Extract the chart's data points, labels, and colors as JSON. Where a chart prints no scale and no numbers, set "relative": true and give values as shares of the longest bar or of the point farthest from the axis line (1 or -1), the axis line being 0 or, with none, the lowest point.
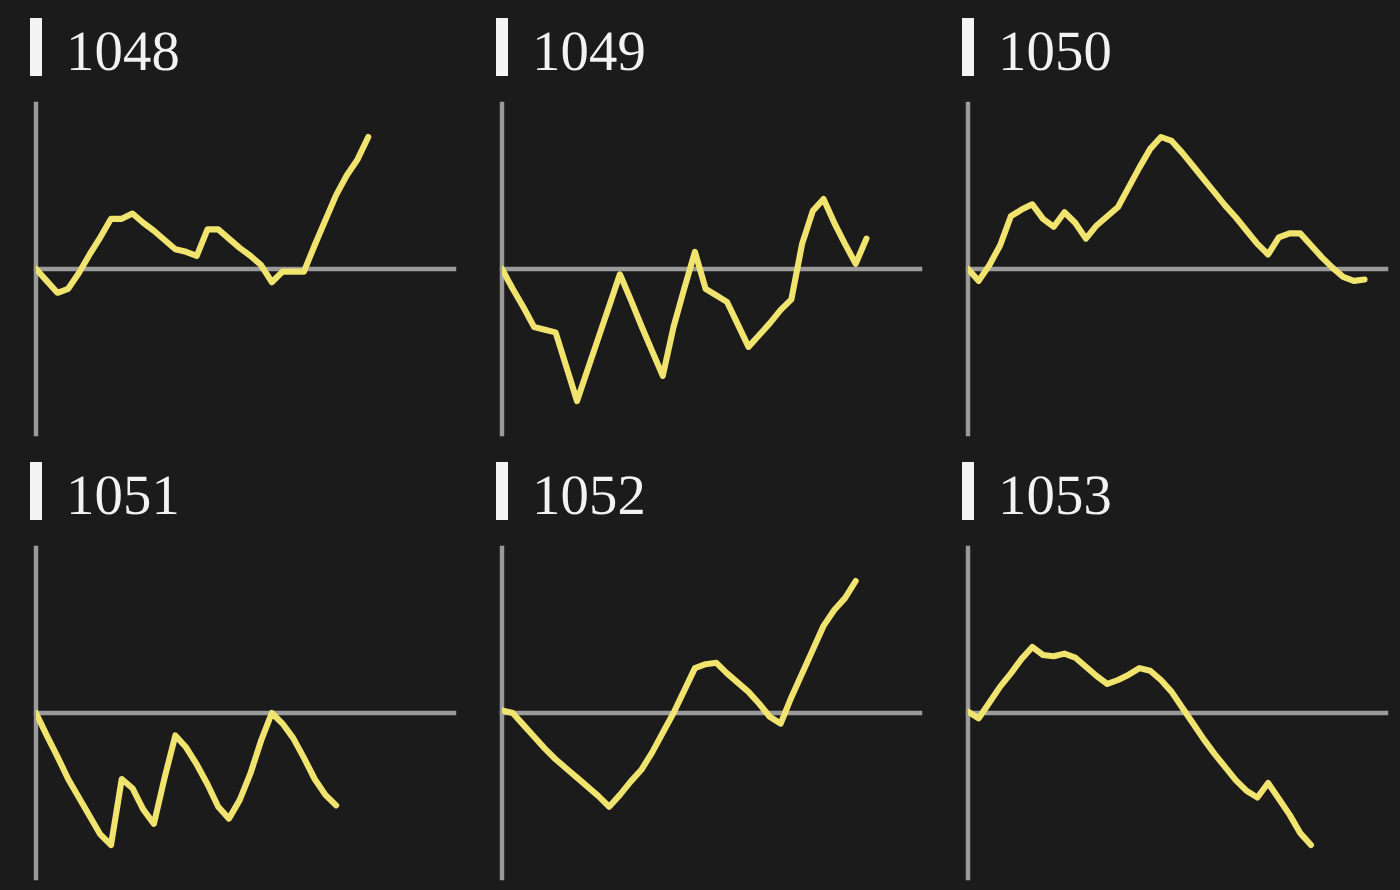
{
  "chart_data": [
    {
      "type": "line",
      "title": "1048",
      "relative": true,
      "categories": [
        null,
        null,
        null,
        null,
        null,
        null,
        null,
        null,
        null,
        null,
        null,
        null,
        null,
        null,
        null,
        null,
        null,
        null,
        null,
        null,
        null,
        null,
        null,
        null,
        null,
        null,
        null,
        null,
        null,
        null,
        null,
        null,
        null,
        null,
        null,
        null,
        null,
        null,
        null,
        null
      ],
      "series": [
        {
          "color": "#f0e36e",
          "values": [
            0,
            -0.09,
            -0.18,
            -0.15,
            -0.03,
            0.11,
            0.24,
            0.38,
            0.38,
            0.42,
            0.35,
            0.29,
            0.22,
            0.15,
            0.13,
            0.1,
            0.3,
            0.3,
            0.23,
            0.16,
            0.1,
            0.03,
            -0.1,
            -0.02,
            -0.02,
            -0.02,
            0.18,
            0.37,
            0.56,
            0.71,
            0.83,
            1.0,
            null,
            null,
            null,
            null,
            null,
            null,
            null,
            null
          ]
        }
      ]
    },
    {
      "type": "line",
      "title": "1049",
      "relative": true,
      "categories": [
        null,
        null,
        null,
        null,
        null,
        null,
        null,
        null,
        null,
        null,
        null,
        null,
        null,
        null,
        null,
        null,
        null,
        null,
        null,
        null,
        null,
        null,
        null,
        null,
        null,
        null,
        null,
        null,
        null,
        null,
        null,
        null,
        null,
        null,
        null,
        null,
        null,
        null,
        null,
        null
      ],
      "series": [
        {
          "color": "#f0e36e",
          "values": [
            0,
            -0.15,
            -0.29,
            -0.44,
            -0.46,
            -0.48,
            -0.74,
            -1.0,
            -0.76,
            -0.52,
            -0.28,
            -0.04,
            -0.23,
            -0.43,
            -0.62,
            -0.81,
            -0.44,
            -0.15,
            0.13,
            -0.15,
            -0.2,
            -0.25,
            -0.42,
            -0.59,
            -0.5,
            -0.41,
            -0.31,
            -0.23,
            0.19,
            0.44,
            0.53,
            0.35,
            0.19,
            0.04,
            0.23,
            null,
            null,
            null,
            null,
            null
          ]
        }
      ]
    },
    {
      "type": "line",
      "title": "1050",
      "relative": true,
      "categories": [
        null,
        null,
        null,
        null,
        null,
        null,
        null,
        null,
        null,
        null,
        null,
        null,
        null,
        null,
        null,
        null,
        null,
        null,
        null,
        null,
        null,
        null,
        null,
        null,
        null,
        null,
        null,
        null,
        null,
        null,
        null,
        null,
        null,
        null,
        null,
        null,
        null,
        null,
        null,
        null
      ],
      "series": [
        {
          "color": "#f0e36e",
          "values": [
            0,
            -0.09,
            0.03,
            0.18,
            0.4,
            0.45,
            0.49,
            0.38,
            0.32,
            0.43,
            0.35,
            0.23,
            0.33,
            0.4,
            0.47,
            0.62,
            0.77,
            0.91,
            1.0,
            0.97,
            0.88,
            0.78,
            0.68,
            0.58,
            0.48,
            0.39,
            0.29,
            0.19,
            0.11,
            0.24,
            0.27,
            0.27,
            0.18,
            0.09,
            0.01,
            -0.06,
            -0.09,
            -0.08,
            null,
            null
          ]
        }
      ]
    },
    {
      "type": "line",
      "title": "1051",
      "relative": true,
      "categories": [
        null,
        null,
        null,
        null,
        null,
        null,
        null,
        null,
        null,
        null,
        null,
        null,
        null,
        null,
        null,
        null,
        null,
        null,
        null,
        null,
        null,
        null,
        null,
        null,
        null,
        null,
        null,
        null,
        null,
        null,
        null,
        null,
        null,
        null,
        null,
        null,
        null,
        null,
        null,
        null
      ],
      "series": [
        {
          "color": "#f0e36e",
          "values": [
            0,
            -0.17,
            -0.33,
            -0.5,
            -0.64,
            -0.78,
            -0.92,
            -1.0,
            -0.5,
            -0.57,
            -0.73,
            -0.84,
            -0.49,
            -0.17,
            -0.26,
            -0.39,
            -0.54,
            -0.71,
            -0.8,
            -0.66,
            -0.46,
            -0.21,
            0,
            -0.08,
            -0.19,
            -0.34,
            -0.5,
            -0.62,
            -0.7,
            null,
            null,
            null,
            null,
            null,
            null,
            null,
            null,
            null,
            null,
            null
          ]
        }
      ]
    },
    {
      "type": "line",
      "title": "1052",
      "relative": true,
      "categories": [
        null,
        null,
        null,
        null,
        null,
        null,
        null,
        null,
        null,
        null,
        null,
        null,
        null,
        null,
        null,
        null,
        null,
        null,
        null,
        null,
        null,
        null,
        null,
        null,
        null,
        null,
        null,
        null,
        null,
        null,
        null,
        null,
        null,
        null,
        null,
        null,
        null,
        null,
        null,
        null
      ],
      "series": [
        {
          "color": "#f0e36e",
          "values": [
            0.02,
            0,
            -0.09,
            -0.18,
            -0.27,
            -0.35,
            -0.42,
            -0.49,
            -0.56,
            -0.63,
            -0.71,
            -0.62,
            -0.52,
            -0.43,
            -0.3,
            -0.15,
            0,
            0.17,
            0.34,
            0.37,
            0.38,
            0.3,
            0.23,
            0.16,
            0.07,
            -0.03,
            -0.08,
            0.12,
            0.3,
            0.48,
            0.66,
            0.78,
            0.87,
            1.0,
            null,
            null,
            null,
            null,
            null,
            null
          ]
        }
      ]
    },
    {
      "type": "line",
      "title": "1053",
      "relative": true,
      "categories": [
        null,
        null,
        null,
        null,
        null,
        null,
        null,
        null,
        null,
        null,
        null,
        null,
        null,
        null,
        null,
        null,
        null,
        null,
        null,
        null,
        null,
        null,
        null,
        null,
        null,
        null,
        null,
        null,
        null,
        null,
        null,
        null,
        null,
        null,
        null,
        null,
        null,
        null,
        null,
        null
      ],
      "series": [
        {
          "color": "#f0e36e",
          "values": [
            0.01,
            -0.04,
            0.08,
            0.2,
            0.3,
            0.41,
            0.5,
            0.44,
            0.43,
            0.45,
            0.42,
            0.35,
            0.28,
            0.22,
            0.25,
            0.29,
            0.34,
            0.32,
            0.25,
            0.16,
            0.04,
            -0.08,
            -0.2,
            -0.31,
            -0.41,
            -0.51,
            -0.59,
            -0.64,
            -0.53,
            -0.65,
            -0.77,
            -0.91,
            -1.0,
            null,
            null,
            null,
            null,
            null,
            null,
            null
          ]
        }
      ]
    }
  ]
}
